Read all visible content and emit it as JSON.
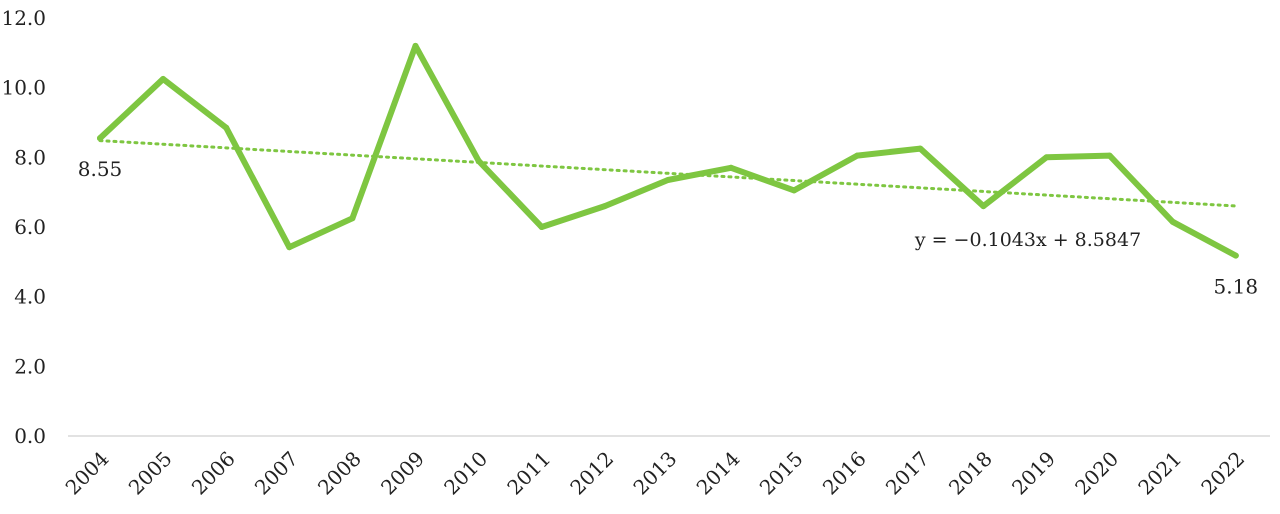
{
  "chart_data": {
    "type": "line",
    "title": "",
    "xlabel": "",
    "ylabel": "",
    "categories": [
      "2004",
      "2005",
      "2006",
      "2007",
      "2008",
      "2009",
      "2010",
      "2011",
      "2012",
      "2013",
      "2014",
      "2015",
      "2016",
      "2017",
      "2018",
      "2019",
      "2020",
      "2021",
      "2022"
    ],
    "series": [
      {
        "values": [
          8.55,
          10.25,
          8.85,
          5.42,
          6.25,
          11.2,
          7.9,
          6.0,
          6.6,
          7.35,
          7.7,
          7.05,
          8.05,
          8.25,
          6.6,
          8.0,
          8.05,
          6.15,
          5.18
        ],
        "color": "#7ec641"
      }
    ],
    "trendline": {
      "type": "linear",
      "slope": -0.1043,
      "intercept": 8.5847,
      "style": "dotted",
      "color": "#7ec641",
      "equation_label": "y = −0.1043x + 8.5847"
    },
    "data_labels": [
      {
        "category": "2004",
        "text": "8.55"
      },
      {
        "category": "2022",
        "text": "5.18"
      }
    ],
    "y_ticks": [
      "0.0",
      "2.0",
      "4.0",
      "6.0",
      "8.0",
      "10.0",
      "12.0"
    ],
    "ylim": [
      0,
      12
    ],
    "grid": false,
    "legend": "none",
    "axis_color": "#d9d9d9"
  }
}
